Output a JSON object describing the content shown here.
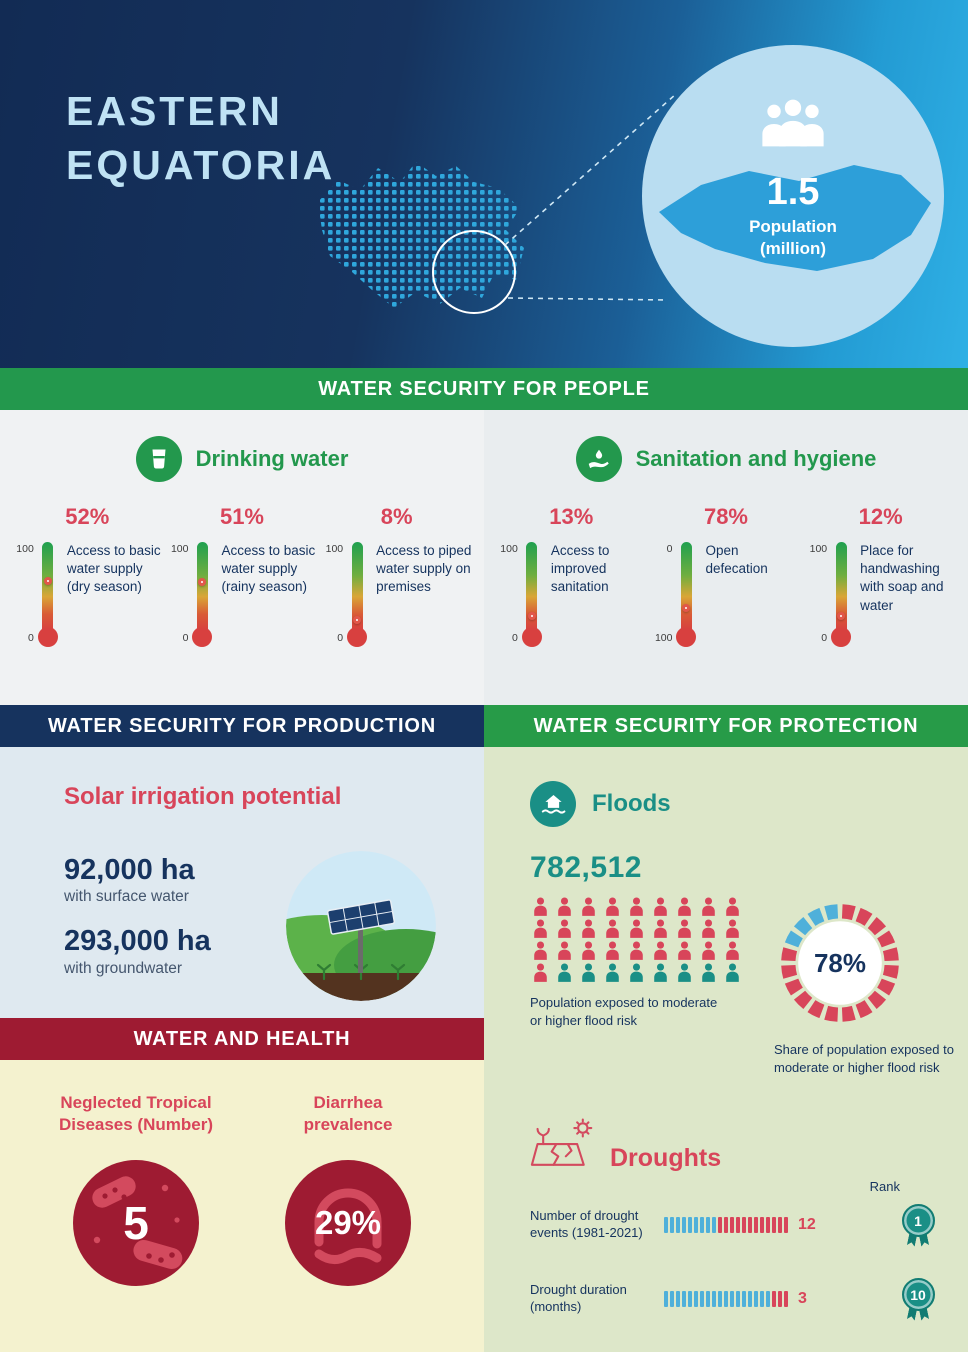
{
  "colors": {
    "navy": "#16335e",
    "crimson": "#d8455a",
    "teal": "#1a8f86",
    "green": "#23984d",
    "lightblue": "#4fb0da",
    "darkred": "#9e1b32"
  },
  "header": {
    "title_line1": "EASTERN",
    "title_line2": "EQUATORIA",
    "population": {
      "value": "1.5",
      "label1": "Population",
      "label2": "(million)"
    }
  },
  "people_section": {
    "banner": "WATER SECURITY FOR PEOPLE",
    "drinking": {
      "title": "Drinking water",
      "items": [
        {
          "pct": "52%",
          "value": 52,
          "scale_top": "100",
          "scale_bottom": "0",
          "label": "Access to basic water supply (dry season)"
        },
        {
          "pct": "51%",
          "value": 51,
          "scale_top": "100",
          "scale_bottom": "0",
          "label": "Access to basic water supply (rainy season)"
        },
        {
          "pct": "8%",
          "value": 8,
          "scale_top": "100",
          "scale_bottom": "0",
          "label": "Access to piped water supply on premises"
        }
      ]
    },
    "sanitation": {
      "title": "Sanitation and hygiene",
      "items": [
        {
          "pct": "13%",
          "value": 13,
          "scale_top": "100",
          "scale_bottom": "0",
          "label": "Access to improved sanitation"
        },
        {
          "pct": "78%",
          "value": 78,
          "scale_top": "0",
          "scale_bottom": "100",
          "label": "Open defecation"
        },
        {
          "pct": "12%",
          "value": 12,
          "scale_top": "100",
          "scale_bottom": "0",
          "label": "Place for handwashing with soap and water"
        }
      ]
    }
  },
  "production_section": {
    "banner": "WATER SECURITY FOR PRODUCTION",
    "title": "Solar irrigation potential",
    "surface_value": "92,000 ha",
    "surface_label": "with surface water",
    "ground_value": "293,000 ha",
    "ground_label": "with groundwater"
  },
  "health_section": {
    "banner": "WATER AND HEALTH",
    "ntd_label": "Neglected Tropical Diseases (Number)",
    "ntd_value": "5",
    "diarrhea_label": "Diarrhea prevalence",
    "diarrhea_value": "29%"
  },
  "protection_section": {
    "banner": "WATER SECURITY FOR PROTECTION",
    "floods": {
      "title": "Floods",
      "population_exposed": "782,512",
      "population_caption": "Population exposed to moderate or higher flood risk",
      "share_pct": "78%",
      "share_value": 78,
      "share_caption": "Share of population exposed to moderate or higher flood risk",
      "pictogram": {
        "total": 36,
        "red": 28,
        "columns": 9
      }
    },
    "droughts": {
      "title": "Droughts",
      "rank_label": "Rank",
      "bar_total": 21,
      "rows": [
        {
          "label": "Number of drought events (1981-2021)",
          "value": 12,
          "rank": "1"
        },
        {
          "label": "Drought duration (months)",
          "value": 3,
          "rank": "10"
        }
      ]
    }
  },
  "chart_data": [
    {
      "type": "bar",
      "title": "Drinking water (% of population)",
      "categories": [
        "Access to basic water supply (dry season)",
        "Access to basic water supply (rainy season)",
        "Access to piped water supply on premises"
      ],
      "values": [
        52,
        51,
        8
      ],
      "ylim": [
        0,
        100
      ]
    },
    {
      "type": "bar",
      "title": "Sanitation and hygiene (% of population)",
      "categories": [
        "Access to improved sanitation",
        "Open defecation",
        "Place for handwashing with soap and water"
      ],
      "values": [
        13,
        78,
        12
      ],
      "ylim": [
        0,
        100
      ]
    },
    {
      "type": "bar",
      "title": "Solar irrigation potential (ha)",
      "categories": [
        "with surface water",
        "with groundwater"
      ],
      "values": [
        92000,
        293000
      ]
    },
    {
      "type": "pie",
      "title": "Share of population exposed to moderate or higher flood risk",
      "categories": [
        "Exposed",
        "Not exposed"
      ],
      "values": [
        78,
        22
      ],
      "population_exposed": 782512
    },
    {
      "type": "bar",
      "title": "Droughts",
      "categories": [
        "Number of drought events (1981-2021)",
        "Drought duration (months)"
      ],
      "values": [
        12,
        3
      ],
      "ranks": [
        1,
        10
      ]
    },
    {
      "type": "bar",
      "title": "Water and health",
      "categories": [
        "Neglected Tropical Diseases (Number)",
        "Diarrhea prevalence (%)"
      ],
      "values": [
        5,
        29
      ]
    }
  ]
}
